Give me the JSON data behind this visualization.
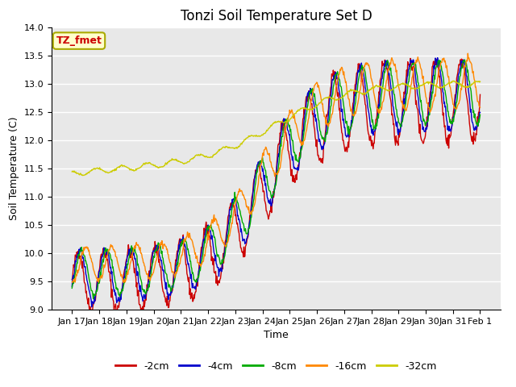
{
  "title": "Tonzi Soil Temperature Set D",
  "xlabel": "Time",
  "ylabel": "Soil Temperature (C)",
  "ylim": [
    9.0,
    14.0
  ],
  "yticks": [
    9.0,
    9.5,
    10.0,
    10.5,
    11.0,
    11.5,
    12.0,
    12.5,
    13.0,
    13.5,
    14.0
  ],
  "xtick_labels": [
    "Jan 17",
    "Jan 18",
    "Jan 19",
    "Jan 20",
    "Jan 21",
    "Jan 22",
    "Jan 23",
    "Jan 24",
    "Jan 25",
    "Jan 26",
    "Jan 27",
    "Jan 28",
    "Jan 29",
    "Jan 30",
    "Jan 31",
    "Feb 1"
  ],
  "legend_labels": [
    "-2cm",
    "-4cm",
    "-8cm",
    "-16cm",
    "-32cm"
  ],
  "legend_colors": [
    "#cc0000",
    "#0000cc",
    "#00aa00",
    "#ff8800",
    "#cccc00"
  ],
  "annotation_text": "TZ_fmet",
  "annotation_color": "#cc0000",
  "annotation_bg": "#ffffcc",
  "annotation_border": "#aaaa00",
  "plot_bg_color": "#e8e8e8",
  "title_fontsize": 12,
  "axis_label_fontsize": 9,
  "tick_fontsize": 8
}
